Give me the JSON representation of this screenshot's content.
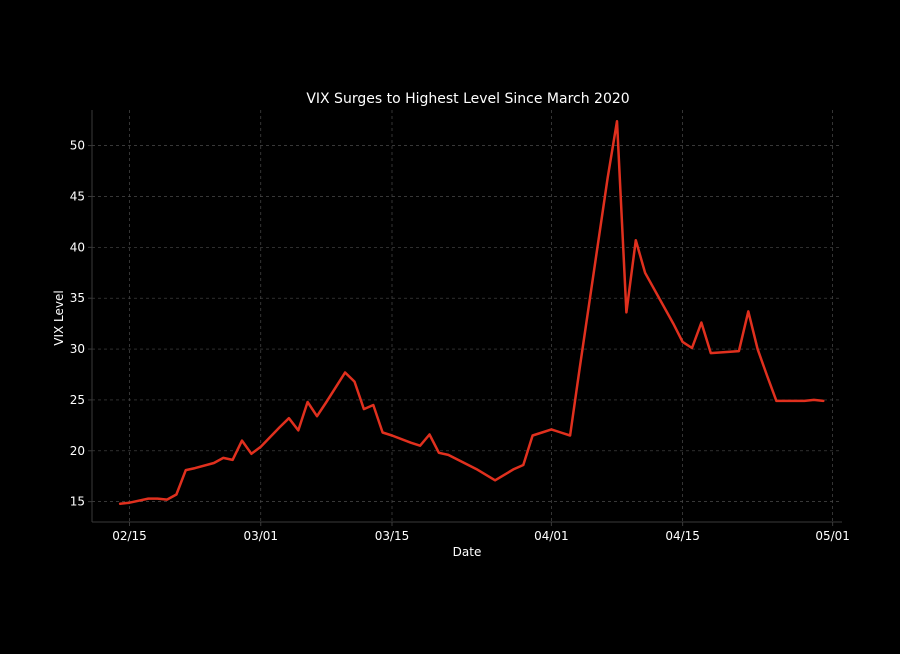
{
  "chart_data": {
    "type": "line",
    "title": "VIX Surges to Highest Level Since March 2020",
    "xlabel": "Date",
    "ylabel": "VIX Level",
    "xlim": [
      "2025-02-11",
      "2025-05-02"
    ],
    "ylim": [
      13,
      53.5
    ],
    "x_ticks": [
      {
        "date": "2025-02-15",
        "label": "02/15"
      },
      {
        "date": "2025-03-01",
        "label": "03/01"
      },
      {
        "date": "2025-03-15",
        "label": "03/15"
      },
      {
        "date": "2025-04-01",
        "label": "04/01"
      },
      {
        "date": "2025-04-15",
        "label": "04/15"
      },
      {
        "date": "2025-05-01",
        "label": "05/01"
      }
    ],
    "y_ticks": [
      15,
      20,
      25,
      30,
      35,
      40,
      45,
      50
    ],
    "grid": true,
    "colors": {
      "background": "#000000",
      "line": "#e0301e",
      "text": "#ffffff",
      "grid": "#4a4a4a",
      "axis": "#3a3a3a"
    },
    "series": [
      {
        "x": [
          "2025-02-14",
          "2025-02-15",
          "2025-02-17",
          "2025-02-18",
          "2025-02-19",
          "2025-02-20",
          "2025-02-21",
          "2025-02-22",
          "2025-02-24",
          "2025-02-25",
          "2025-02-26",
          "2025-02-27",
          "2025-02-28",
          "2025-03-01",
          "2025-03-03",
          "2025-03-04",
          "2025-03-05",
          "2025-03-06",
          "2025-03-07",
          "2025-03-08",
          "2025-03-10",
          "2025-03-11",
          "2025-03-12",
          "2025-03-13",
          "2025-03-14",
          "2025-03-15",
          "2025-03-17",
          "2025-03-18",
          "2025-03-19",
          "2025-03-20",
          "2025-03-21",
          "2025-03-24",
          "2025-03-26",
          "2025-03-28",
          "2025-03-29",
          "2025-03-30",
          "2025-03-31",
          "2025-04-01",
          "2025-04-02",
          "2025-04-03",
          "2025-04-04",
          "2025-04-07",
          "2025-04-08",
          "2025-04-09",
          "2025-04-10",
          "2025-04-11",
          "2025-04-14",
          "2025-04-15",
          "2025-04-16",
          "2025-04-17",
          "2025-04-18",
          "2025-04-21",
          "2025-04-22",
          "2025-04-23",
          "2025-04-24",
          "2025-04-25",
          "2025-04-28",
          "2025-04-29",
          "2025-04-30"
        ],
        "values": [
          14.8,
          14.9,
          15.3,
          15.3,
          15.2,
          15.7,
          18.1,
          18.3,
          18.8,
          19.3,
          19.1,
          21.0,
          19.7,
          20.4,
          22.3,
          23.2,
          22.0,
          24.8,
          23.4,
          24.8,
          27.7,
          26.8,
          24.1,
          24.5,
          21.8,
          21.5,
          20.8,
          20.5,
          21.6,
          19.8,
          19.6,
          18.2,
          17.1,
          18.2,
          18.6,
          21.5,
          21.8,
          22.1,
          21.8,
          21.5,
          28.0,
          46.8,
          52.4,
          33.6,
          40.7,
          37.5,
          32.5,
          30.7,
          30.1,
          32.6,
          29.6,
          29.8,
          33.7,
          30.0,
          27.4,
          24.9,
          24.9,
          25.0,
          24.9
        ]
      }
    ]
  }
}
